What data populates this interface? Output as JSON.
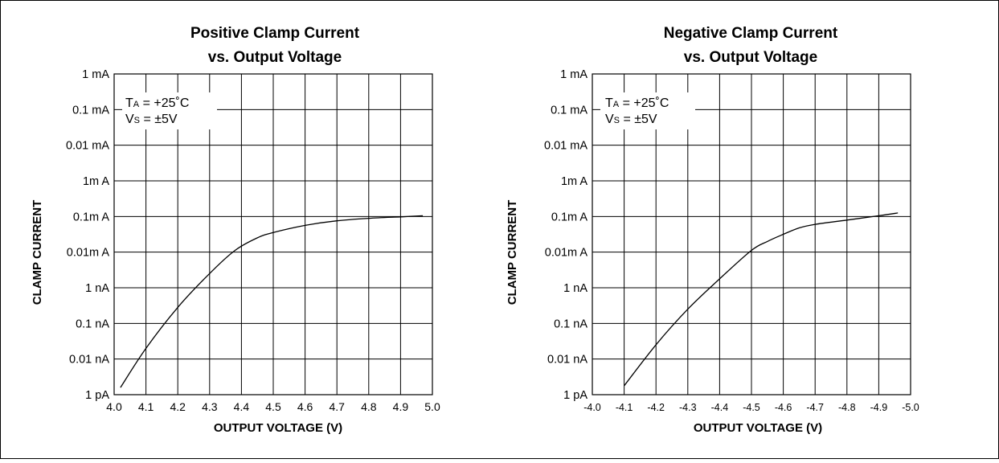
{
  "chart_data": [
    {
      "type": "line",
      "title_line1": "Positive Clamp Current",
      "title_line2": "vs. Output Voltage",
      "xlabel": "OUTPUT VOLTAGE (V)",
      "ylabel": "CLAMP CURRENT",
      "x_ticks": [
        "4.0",
        "4.1",
        "4.2",
        "4.3",
        "4.4",
        "4.5",
        "4.6",
        "4.7",
        "4.8",
        "4.9",
        "5.0"
      ],
      "y_ticks": [
        "1 mA",
        "0.1 mA",
        "0.01 mA",
        "1m A",
        "0.1m A",
        "0.01m A",
        "1 nA",
        "0.1 nA",
        "0.01 nA",
        "1 pA"
      ],
      "xlim": [
        4.0,
        5.0
      ],
      "y_scale": "log",
      "annotation": {
        "line1_main": "T",
        "line1_sub": "A",
        "line1_rest": " = +25˚C",
        "line2_main": "V",
        "line2_sub": "S",
        "line2_rest": " = ±5V"
      },
      "grid": true,
      "series": [
        {
          "x": [
            4.02,
            4.1,
            4.2,
            4.3,
            4.38,
            4.45,
            4.5,
            4.6,
            4.7,
            4.8,
            4.9,
            4.97
          ],
          "y_decades_below_1mA": [
            8.8,
            7.7,
            6.55,
            5.6,
            4.95,
            4.6,
            4.45,
            4.25,
            4.12,
            4.05,
            4.01,
            3.98
          ]
        }
      ]
    },
    {
      "type": "line",
      "title_line1": "Negative Clamp Current",
      "title_line2": "vs. Output Voltage",
      "xlabel": "OUTPUT VOLTAGE (V)",
      "ylabel": "CLAMP CURRENT",
      "x_ticks": [
        "-4.0",
        "-4.1",
        "-4.2",
        "-4.3",
        "-4.4",
        "-4.5",
        "-4.6",
        "-4.7",
        "-4.8",
        "-4.9",
        "-5.0"
      ],
      "y_ticks": [
        "1 mA",
        "0.1 mA",
        "0.01 mA",
        "1m A",
        "0.1m A",
        "0.01m A",
        "1 nA",
        "0.1 nA",
        "0.01 nA",
        "1 pA"
      ],
      "xlim": [
        -4.0,
        -5.0
      ],
      "y_scale": "log",
      "annotation": {
        "line1_main": "T",
        "line1_sub": "A",
        "line1_rest": " = +25˚C",
        "line2_main": "V",
        "line2_sub": "S",
        "line2_rest": " = ±5V"
      },
      "grid": true,
      "series": [
        {
          "x": [
            -4.1,
            -4.2,
            -4.3,
            -4.4,
            -4.5,
            -4.55,
            -4.6,
            -4.65,
            -4.7,
            -4.8,
            -4.9,
            -4.96
          ],
          "y_decades_below_1mA": [
            8.75,
            7.6,
            6.6,
            5.75,
            4.95,
            4.7,
            4.5,
            4.32,
            4.22,
            4.1,
            3.98,
            3.9
          ]
        }
      ]
    }
  ]
}
